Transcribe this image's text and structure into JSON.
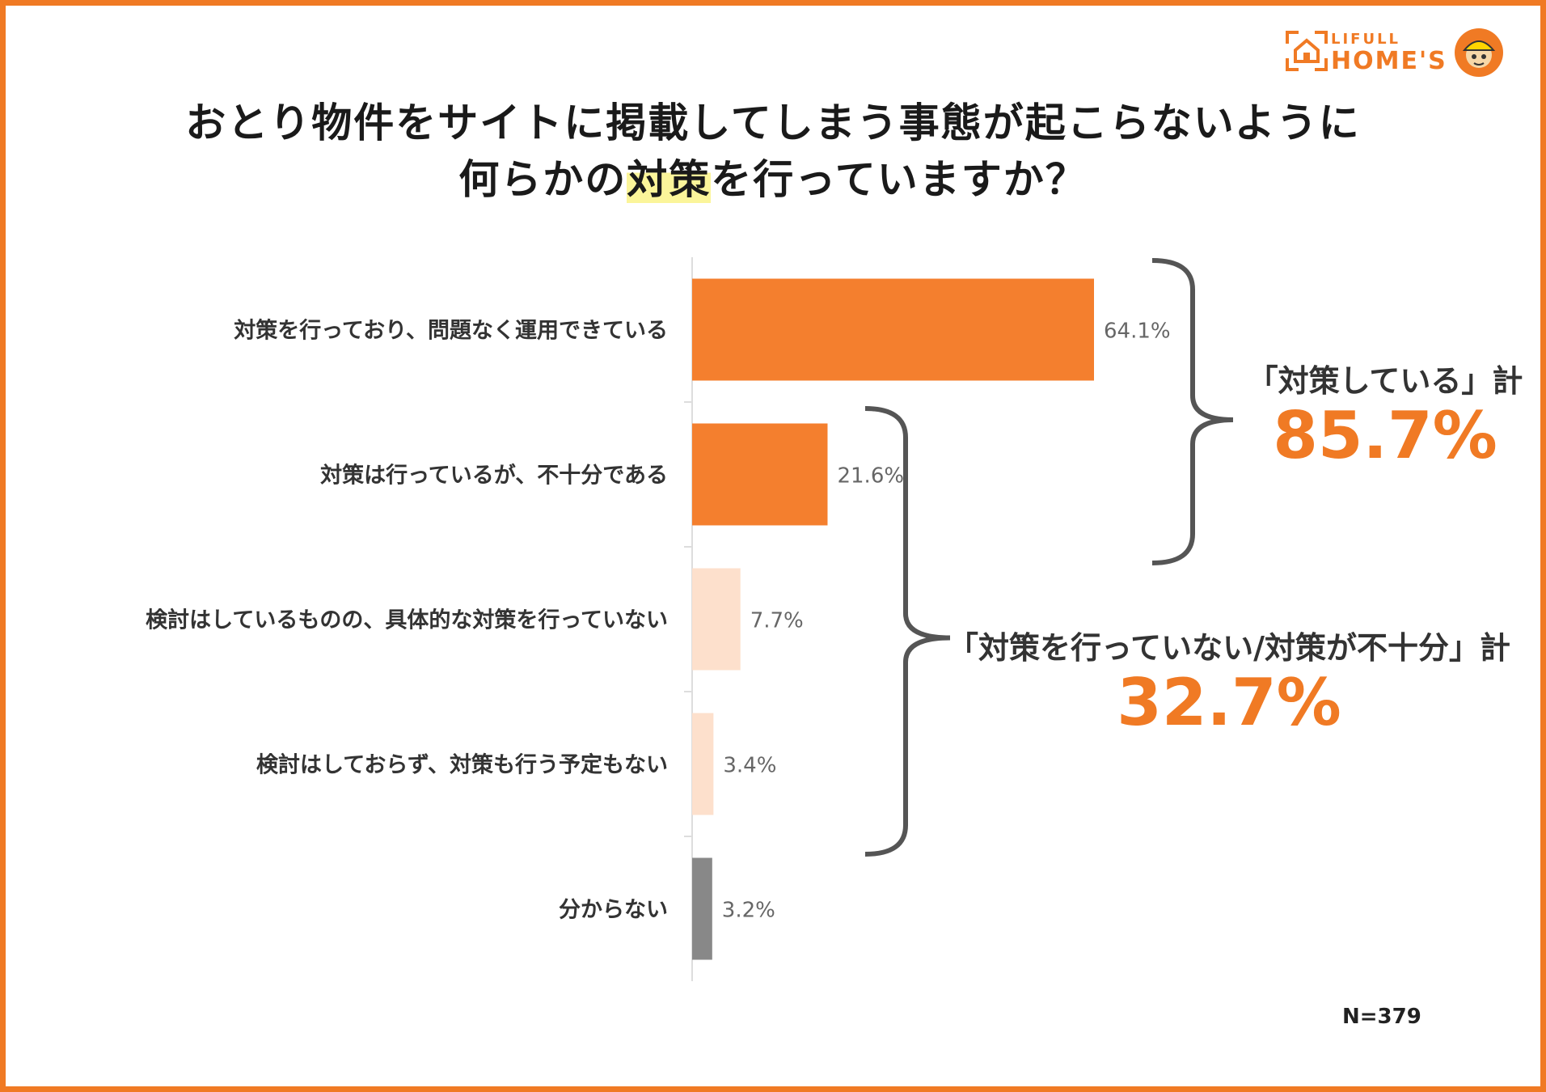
{
  "title": {
    "line1": "おとり物件をサイトに掲載してしまう事態が起こらないように",
    "line2_pre": "何らかの",
    "line2_highlight": "対策",
    "line2_post": "を行っていますか？"
  },
  "logo": {
    "small": "LIFULL",
    "big": "HOME'S"
  },
  "chart_data": {
    "type": "bar",
    "orientation": "horizontal",
    "categories": [
      "対策を行っており、問題なく運用できている",
      "対策は行っているが、不十分である",
      "検討はしているものの、具体的な対策を行っていない",
      "検討はしておらず、対策も行う予定もない",
      "分からない"
    ],
    "values": [
      64.1,
      21.6,
      7.7,
      3.4,
      3.2
    ],
    "value_labels": [
      "64.1%",
      "21.6%",
      "7.7%",
      "3.4%",
      "3.2%"
    ],
    "colors": [
      "#f47f2e",
      "#f47f2e",
      "#fde0cc",
      "#fde0cc",
      "#888888"
    ],
    "xlim": [
      0,
      100
    ],
    "unit": "%"
  },
  "callouts": {
    "implemented": {
      "label": "「対策している」計",
      "value": "85.7%"
    },
    "insufficient": {
      "label": "「対策を行っていない/対策が不十分」計",
      "value": "32.7%"
    }
  },
  "note": "N=379",
  "colors": {
    "accent": "#f07a24",
    "bracket": "#555555",
    "highlight": "#fbf59a"
  }
}
